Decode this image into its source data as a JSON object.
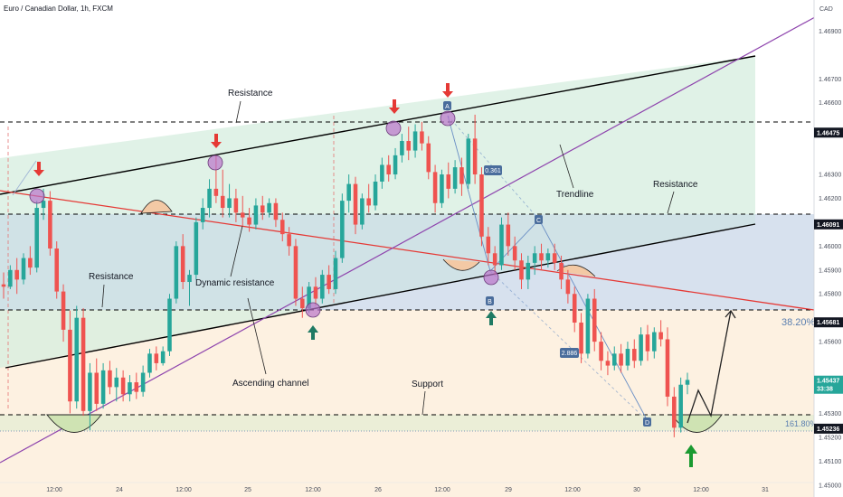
{
  "header": {
    "title": "Euro / Canadian Dollar, 1h, FXCM",
    "currency": "CAD"
  },
  "colors": {
    "bull": "#26a69a",
    "bear": "#ef5350",
    "channel": "#000000",
    "trendline": "#8e44ad",
    "dynamic": "#e53935",
    "level": "#000000",
    "pattern": "#6a8fc5"
  },
  "annotations": {
    "resistance_top": "Resistance",
    "resistance_left": "Resistance",
    "resistance_right": "Resistance",
    "dynamic_resistance": "Dynamic resistance",
    "ascending_channel": "Ascending channel",
    "support": "Support",
    "trendline": "Trendline",
    "fib_382": "38.20%",
    "fib_1618": "161.80%"
  },
  "pattern_points": {
    "A": "A",
    "B": "B",
    "C": "C",
    "D": "D"
  },
  "pattern_ratios": {
    "ab": "0.361",
    "bc_cd": "2.886"
  },
  "arrows": {
    "down_count": 4,
    "up_count": 2
  },
  "chart_data": {
    "type": "candlestick",
    "symbol": "EURCAD",
    "timeframe": "1h",
    "source": "FXCM",
    "y_axis": {
      "ticks": [
        "1.46900",
        "1.46700",
        "1.46600",
        "1.46300",
        "1.46200",
        "1.46000",
        "1.45900",
        "1.45800",
        "1.45600",
        "1.45300",
        "1.45200",
        "1.45100",
        "1.45000"
      ],
      "range": [
        1.4495,
        1.4703
      ]
    },
    "x_axis": {
      "ticks": [
        "12:00",
        "24",
        "12:00",
        "25",
        "12:00",
        "26",
        "12:00",
        "29",
        "12:00",
        "30",
        "12:00",
        "31"
      ]
    },
    "price_labels": [
      {
        "value": "1.46475",
        "dark": true
      },
      {
        "value": "1.46091",
        "dark": true
      },
      {
        "value": "1.45681",
        "dark": true
      },
      {
        "value": "1.45437",
        "dark": false,
        "countdown": "33:38"
      },
      {
        "value": "1.45236",
        "dark": true
      }
    ],
    "horizontal_levels": [
      1.46475,
      1.46091,
      1.45681,
      1.45236
    ],
    "fib_levels": [
      {
        "label": "38.20%",
        "value": 1.45681
      },
      {
        "label": "161.80%",
        "value": 1.45195
      }
    ],
    "candles": [
      {
        "o": 1.4584,
        "h": 1.4589,
        "l": 1.4578,
        "c": 1.4583
      },
      {
        "o": 1.4583,
        "h": 1.4592,
        "l": 1.4582,
        "c": 1.459
      },
      {
        "o": 1.459,
        "h": 1.4595,
        "l": 1.458,
        "c": 1.4586
      },
      {
        "o": 1.4586,
        "h": 1.4597,
        "l": 1.4584,
        "c": 1.4595
      },
      {
        "o": 1.4595,
        "h": 1.46,
        "l": 1.4588,
        "c": 1.4591
      },
      {
        "o": 1.4591,
        "h": 1.4619,
        "l": 1.4589,
        "c": 1.4616
      },
      {
        "o": 1.4616,
        "h": 1.4624,
        "l": 1.4611,
        "c": 1.4619
      },
      {
        "o": 1.4619,
        "h": 1.4623,
        "l": 1.4596,
        "c": 1.4599
      },
      {
        "o": 1.4599,
        "h": 1.4602,
        "l": 1.4578,
        "c": 1.4581
      },
      {
        "o": 1.4581,
        "h": 1.4584,
        "l": 1.456,
        "c": 1.4565
      },
      {
        "o": 1.4565,
        "h": 1.4573,
        "l": 1.453,
        "c": 1.4535
      },
      {
        "o": 1.4535,
        "h": 1.4575,
        "l": 1.4532,
        "c": 1.457
      },
      {
        "o": 1.457,
        "h": 1.4574,
        "l": 1.4529,
        "c": 1.4531
      },
      {
        "o": 1.4531,
        "h": 1.4551,
        "l": 1.4523,
        "c": 1.4547
      },
      {
        "o": 1.4547,
        "h": 1.4553,
        "l": 1.4531,
        "c": 1.4534
      },
      {
        "o": 1.4534,
        "h": 1.4551,
        "l": 1.4532,
        "c": 1.4548
      },
      {
        "o": 1.4548,
        "h": 1.4552,
        "l": 1.4538,
        "c": 1.4541
      },
      {
        "o": 1.4541,
        "h": 1.4549,
        "l": 1.4535,
        "c": 1.4545
      },
      {
        "o": 1.4545,
        "h": 1.4548,
        "l": 1.4535,
        "c": 1.4538
      },
      {
        "o": 1.4538,
        "h": 1.4546,
        "l": 1.4535,
        "c": 1.4543
      },
      {
        "o": 1.4543,
        "h": 1.4547,
        "l": 1.4536,
        "c": 1.4539
      },
      {
        "o": 1.4539,
        "h": 1.455,
        "l": 1.4537,
        "c": 1.4547
      },
      {
        "o": 1.4547,
        "h": 1.4557,
        "l": 1.4545,
        "c": 1.4555
      },
      {
        "o": 1.4555,
        "h": 1.4558,
        "l": 1.4548,
        "c": 1.4551
      },
      {
        "o": 1.4551,
        "h": 1.4558,
        "l": 1.455,
        "c": 1.4556
      },
      {
        "o": 1.4556,
        "h": 1.458,
        "l": 1.4554,
        "c": 1.4578
      },
      {
        "o": 1.4578,
        "h": 1.4602,
        "l": 1.4576,
        "c": 1.46
      },
      {
        "o": 1.46,
        "h": 1.4605,
        "l": 1.4582,
        "c": 1.4585
      },
      {
        "o": 1.4585,
        "h": 1.459,
        "l": 1.4575,
        "c": 1.4588
      },
      {
        "o": 1.4588,
        "h": 1.4612,
        "l": 1.4586,
        "c": 1.461
      },
      {
        "o": 1.461,
        "h": 1.462,
        "l": 1.4607,
        "c": 1.4616
      },
      {
        "o": 1.4616,
        "h": 1.4628,
        "l": 1.4612,
        "c": 1.4624
      },
      {
        "o": 1.4624,
        "h": 1.4638,
        "l": 1.4618,
        "c": 1.4621
      },
      {
        "o": 1.4621,
        "h": 1.4632,
        "l": 1.4612,
        "c": 1.4616
      },
      {
        "o": 1.4616,
        "h": 1.4626,
        "l": 1.4612,
        "c": 1.462
      },
      {
        "o": 1.462,
        "h": 1.4624,
        "l": 1.461,
        "c": 1.4614
      },
      {
        "o": 1.4614,
        "h": 1.4621,
        "l": 1.4608,
        "c": 1.4612
      },
      {
        "o": 1.4612,
        "h": 1.4616,
        "l": 1.4606,
        "c": 1.4609
      },
      {
        "o": 1.4609,
        "h": 1.462,
        "l": 1.4607,
        "c": 1.4617
      },
      {
        "o": 1.4617,
        "h": 1.4621,
        "l": 1.4611,
        "c": 1.4614
      },
      {
        "o": 1.4614,
        "h": 1.462,
        "l": 1.4612,
        "c": 1.4618
      },
      {
        "o": 1.4618,
        "h": 1.462,
        "l": 1.4608,
        "c": 1.4611
      },
      {
        "o": 1.4611,
        "h": 1.4614,
        "l": 1.4602,
        "c": 1.4605
      },
      {
        "o": 1.4605,
        "h": 1.4608,
        "l": 1.4596,
        "c": 1.46
      },
      {
        "o": 1.46,
        "h": 1.4603,
        "l": 1.4575,
        "c": 1.4578
      },
      {
        "o": 1.4578,
        "h": 1.4583,
        "l": 1.457,
        "c": 1.4574
      },
      {
        "o": 1.4574,
        "h": 1.4585,
        "l": 1.4572,
        "c": 1.4583
      },
      {
        "o": 1.4583,
        "h": 1.4587,
        "l": 1.4575,
        "c": 1.4578
      },
      {
        "o": 1.4578,
        "h": 1.459,
        "l": 1.4576,
        "c": 1.4588
      },
      {
        "o": 1.4588,
        "h": 1.4592,
        "l": 1.458,
        "c": 1.4582
      },
      {
        "o": 1.4582,
        "h": 1.4598,
        "l": 1.458,
        "c": 1.4595
      },
      {
        "o": 1.4595,
        "h": 1.4622,
        "l": 1.4593,
        "c": 1.4619
      },
      {
        "o": 1.4619,
        "h": 1.463,
        "l": 1.4614,
        "c": 1.4626
      },
      {
        "o": 1.4626,
        "h": 1.4629,
        "l": 1.4605,
        "c": 1.4609
      },
      {
        "o": 1.4609,
        "h": 1.4622,
        "l": 1.4607,
        "c": 1.462
      },
      {
        "o": 1.462,
        "h": 1.4626,
        "l": 1.4614,
        "c": 1.4617
      },
      {
        "o": 1.4617,
        "h": 1.463,
        "l": 1.4615,
        "c": 1.4627
      },
      {
        "o": 1.4627,
        "h": 1.4637,
        "l": 1.4624,
        "c": 1.4634
      },
      {
        "o": 1.4634,
        "h": 1.4638,
        "l": 1.4627,
        "c": 1.463
      },
      {
        "o": 1.463,
        "h": 1.4641,
        "l": 1.4628,
        "c": 1.4638
      },
      {
        "o": 1.4638,
        "h": 1.4647,
        "l": 1.4635,
        "c": 1.4644
      },
      {
        "o": 1.4644,
        "h": 1.465,
        "l": 1.4636,
        "c": 1.464
      },
      {
        "o": 1.464,
        "h": 1.4651,
        "l": 1.4637,
        "c": 1.4648
      },
      {
        "o": 1.4648,
        "h": 1.4652,
        "l": 1.464,
        "c": 1.4643
      },
      {
        "o": 1.4643,
        "h": 1.4646,
        "l": 1.4628,
        "c": 1.4631
      },
      {
        "o": 1.4631,
        "h": 1.4634,
        "l": 1.4614,
        "c": 1.4618
      },
      {
        "o": 1.4618,
        "h": 1.4632,
        "l": 1.4616,
        "c": 1.463
      },
      {
        "o": 1.463,
        "h": 1.4635,
        "l": 1.462,
        "c": 1.4624
      },
      {
        "o": 1.4624,
        "h": 1.4636,
        "l": 1.4622,
        "c": 1.4633
      },
      {
        "o": 1.4633,
        "h": 1.4637,
        "l": 1.4621,
        "c": 1.4626
      },
      {
        "o": 1.4626,
        "h": 1.4647,
        "l": 1.4624,
        "c": 1.4645
      },
      {
        "o": 1.4645,
        "h": 1.4655,
        "l": 1.4626,
        "c": 1.463
      },
      {
        "o": 1.463,
        "h": 1.4633,
        "l": 1.46,
        "c": 1.4604
      },
      {
        "o": 1.4604,
        "h": 1.4608,
        "l": 1.4592,
        "c": 1.4597
      },
      {
        "o": 1.4597,
        "h": 1.46,
        "l": 1.4588,
        "c": 1.4592
      },
      {
        "o": 1.4592,
        "h": 1.4612,
        "l": 1.459,
        "c": 1.4609
      },
      {
        "o": 1.4609,
        "h": 1.4614,
        "l": 1.4596,
        "c": 1.46
      },
      {
        "o": 1.46,
        "h": 1.4604,
        "l": 1.459,
        "c": 1.4594
      },
      {
        "o": 1.4594,
        "h": 1.4597,
        "l": 1.4582,
        "c": 1.4586
      },
      {
        "o": 1.4586,
        "h": 1.4596,
        "l": 1.4582,
        "c": 1.4593
      },
      {
        "o": 1.4593,
        "h": 1.46,
        "l": 1.4588,
        "c": 1.4597
      },
      {
        "o": 1.4597,
        "h": 1.4601,
        "l": 1.459,
        "c": 1.4594
      },
      {
        "o": 1.4594,
        "h": 1.4599,
        "l": 1.4591,
        "c": 1.4597
      },
      {
        "o": 1.4597,
        "h": 1.4601,
        "l": 1.459,
        "c": 1.4593
      },
      {
        "o": 1.4593,
        "h": 1.4596,
        "l": 1.4582,
        "c": 1.4586
      },
      {
        "o": 1.4586,
        "h": 1.459,
        "l": 1.4576,
        "c": 1.458
      },
      {
        "o": 1.458,
        "h": 1.4583,
        "l": 1.4564,
        "c": 1.4568
      },
      {
        "o": 1.4568,
        "h": 1.4572,
        "l": 1.4551,
        "c": 1.4555
      },
      {
        "o": 1.4555,
        "h": 1.458,
        "l": 1.4553,
        "c": 1.4578
      },
      {
        "o": 1.4578,
        "h": 1.4582,
        "l": 1.4556,
        "c": 1.456
      },
      {
        "o": 1.456,
        "h": 1.4564,
        "l": 1.4548,
        "c": 1.4552
      },
      {
        "o": 1.4552,
        "h": 1.4556,
        "l": 1.4546,
        "c": 1.455
      },
      {
        "o": 1.455,
        "h": 1.4558,
        "l": 1.4548,
        "c": 1.4555
      },
      {
        "o": 1.4555,
        "h": 1.4559,
        "l": 1.4547,
        "c": 1.455
      },
      {
        "o": 1.455,
        "h": 1.456,
        "l": 1.4548,
        "c": 1.4557
      },
      {
        "o": 1.4557,
        "h": 1.4561,
        "l": 1.4549,
        "c": 1.4552
      },
      {
        "o": 1.4552,
        "h": 1.4566,
        "l": 1.455,
        "c": 1.4563
      },
      {
        "o": 1.4563,
        "h": 1.4567,
        "l": 1.4552,
        "c": 1.4556
      },
      {
        "o": 1.4556,
        "h": 1.4566,
        "l": 1.4553,
        "c": 1.4564
      },
      {
        "o": 1.4564,
        "h": 1.4569,
        "l": 1.4558,
        "c": 1.4561
      },
      {
        "o": 1.4561,
        "h": 1.4566,
        "l": 1.4533,
        "c": 1.4537
      },
      {
        "o": 1.4537,
        "h": 1.4541,
        "l": 1.452,
        "c": 1.4524
      },
      {
        "o": 1.4524,
        "h": 1.4545,
        "l": 1.4522,
        "c": 1.4542
      },
      {
        "o": 1.4542,
        "h": 1.4547,
        "l": 1.4538,
        "c": 1.4544
      }
    ]
  }
}
